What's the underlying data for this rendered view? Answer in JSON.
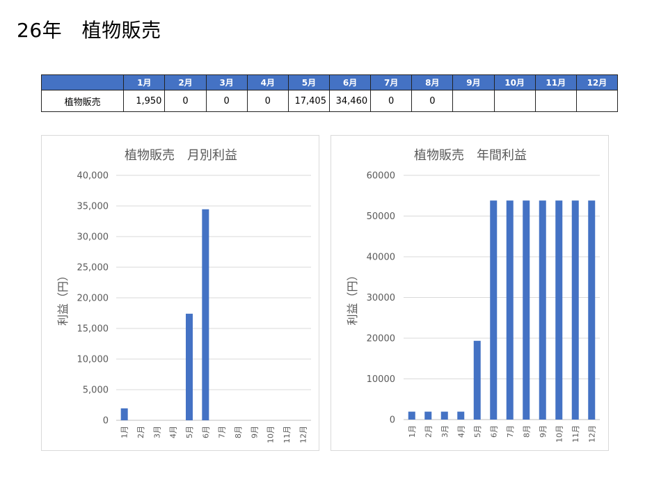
{
  "page": {
    "title": "26年　植物販売"
  },
  "summary_table": {
    "corner": "",
    "months": [
      "1月",
      "2月",
      "3月",
      "4月",
      "5月",
      "6月",
      "7月",
      "8月",
      "9月",
      "10月",
      "11月",
      "12月"
    ],
    "row_label": "植物販売",
    "values": [
      "1,950",
      "0",
      "0",
      "0",
      "17,405",
      "34,460",
      "0",
      "0",
      "",
      "",
      "",
      ""
    ]
  },
  "chart_data": [
    {
      "type": "bar",
      "title": "植物販売　月別利益",
      "categories": [
        "1月",
        "2月",
        "3月",
        "4月",
        "5月",
        "6月",
        "7月",
        "8月",
        "9月",
        "10月",
        "11月",
        "12月"
      ],
      "values": [
        1950,
        0,
        0,
        0,
        17405,
        34460,
        0,
        0,
        0,
        0,
        0,
        0
      ],
      "ylabel": "利益（円）",
      "xlabel": "",
      "ylim": [
        0,
        40000
      ],
      "yticks": [
        "0",
        "5,000",
        "10,000",
        "15,000",
        "20,000",
        "25,000",
        "30,000",
        "35,000",
        "40,000"
      ],
      "grid": true,
      "color": "#4472c4"
    },
    {
      "type": "bar",
      "title": "植物販売　年間利益",
      "categories": [
        "1月",
        "2月",
        "3月",
        "4月",
        "5月",
        "6月",
        "7月",
        "8月",
        "9月",
        "10月",
        "11月",
        "12月"
      ],
      "values": [
        1950,
        1950,
        1950,
        1950,
        19355,
        53815,
        53815,
        53815,
        53815,
        53815,
        53815,
        53815
      ],
      "ylabel": "利益（円）",
      "xlabel": "",
      "ylim": [
        0,
        60000
      ],
      "yticks": [
        "0",
        "10000",
        "20000",
        "30000",
        "40000",
        "50000",
        "60000"
      ],
      "grid": true,
      "color": "#4472c4"
    }
  ]
}
